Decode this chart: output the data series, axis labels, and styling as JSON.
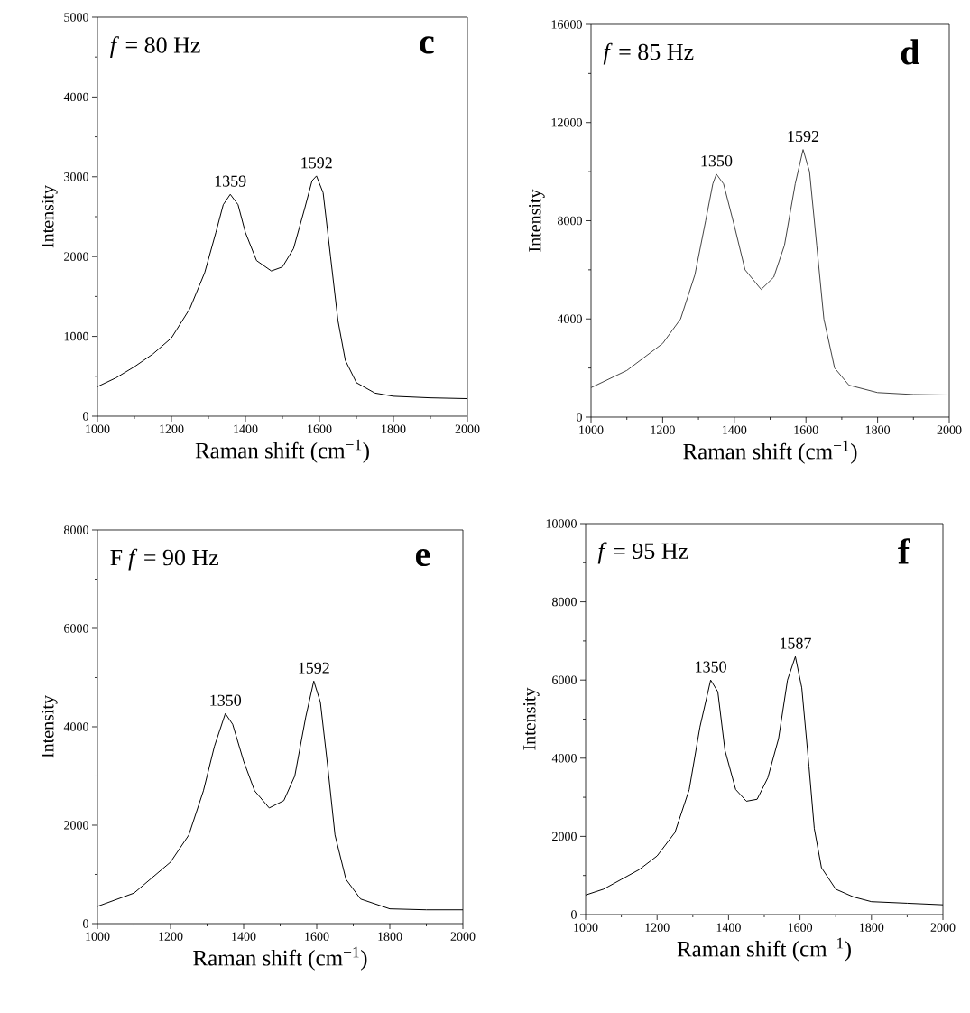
{
  "chart_data": [
    {
      "type": "line",
      "xlabel": "Raman shift (cm$^{−1}$)",
      "ylabel": "Intensity",
      "color": "#000000",
      "x": [
        1000,
        1050,
        1100,
        1150,
        1200,
        1250,
        1290,
        1320,
        1340,
        1359,
        1380,
        1400,
        1430,
        1470,
        1500,
        1530,
        1560,
        1580,
        1592,
        1610,
        1630,
        1650,
        1670,
        1700,
        1750,
        1800,
        1900,
        2000
      ],
      "values": [
        370,
        480,
        620,
        780,
        980,
        1350,
        1800,
        2300,
        2650,
        2780,
        2650,
        2300,
        1950,
        1820,
        1870,
        2100,
        2600,
        2950,
        3010,
        2800,
        2000,
        1200,
        700,
        420,
        290,
        250,
        230,
        220
      ],
      "xlim": [
        1000,
        2000
      ],
      "ylim": [
        0,
        5000
      ],
      "xticks": [
        1000,
        1200,
        1400,
        1600,
        1800,
        2000
      ],
      "yticks": [
        0,
        1000,
        2000,
        3000,
        4000,
        5000
      ],
      "annotations": [
        "*f* = 80 Hz",
        "c",
        {
          "text": "1359",
          "x": 1359,
          "y": 2780
        },
        {
          "text": "1592",
          "x": 1592,
          "y": 3010
        }
      ]
    },
    {
      "type": "line",
      "xlabel": "Raman shift (cm$^{−1}$)",
      "ylabel": "Intensity",
      "color": "#444444",
      "x": [
        1000,
        1100,
        1200,
        1250,
        1290,
        1320,
        1340,
        1350,
        1370,
        1400,
        1430,
        1475,
        1510,
        1540,
        1570,
        1592,
        1610,
        1630,
        1650,
        1680,
        1720,
        1800,
        1900,
        2000
      ],
      "values": [
        1200,
        1900,
        3000,
        4000,
        5800,
        8000,
        9500,
        9900,
        9500,
        7800,
        6000,
        5200,
        5700,
        7000,
        9500,
        10900,
        10000,
        7000,
        4000,
        2000,
        1300,
        1000,
        920,
        900
      ],
      "xlim": [
        1000,
        2000
      ],
      "ylim": [
        0,
        16000
      ],
      "xticks": [
        1000,
        1200,
        1400,
        1600,
        1800,
        2000
      ],
      "yticks": [
        0,
        4000,
        8000,
        12000,
        16000
      ],
      "annotations": [
        "*f* = 85 Hz",
        "d",
        {
          "text": "1350",
          "x": 1350,
          "y": 9900
        },
        {
          "text": "1592",
          "x": 1592,
          "y": 10900
        }
      ]
    },
    {
      "type": "line",
      "xlabel": "Raman shift (cm$^{−1}$)",
      "ylabel": "Intensity",
      "color": "#000000",
      "x": [
        1000,
        1100,
        1200,
        1250,
        1290,
        1320,
        1350,
        1370,
        1400,
        1430,
        1470,
        1510,
        1540,
        1570,
        1592,
        1610,
        1630,
        1650,
        1680,
        1720,
        1800,
        1900,
        2000
      ],
      "values": [
        350,
        620,
        1250,
        1800,
        2700,
        3600,
        4270,
        4050,
        3300,
        2700,
        2350,
        2500,
        3000,
        4200,
        4930,
        4500,
        3200,
        1800,
        900,
        500,
        300,
        280,
        280
      ],
      "xlim": [
        1000,
        2000
      ],
      "ylim": [
        0,
        8000
      ],
      "xticks": [
        1000,
        1200,
        1400,
        1600,
        1800,
        2000
      ],
      "yticks": [
        0,
        2000,
        4000,
        6000,
        8000
      ],
      "annotations": [
        "F",
        "*f* = 90 Hz",
        "e",
        {
          "text": "1350",
          "x": 1350,
          "y": 4270
        },
        {
          "text": "1592",
          "x": 1592,
          "y": 4930
        }
      ]
    },
    {
      "type": "line",
      "xlabel": "Raman shift (cm$^{−1}$)",
      "ylabel": "Intensity",
      "color": "#000000",
      "x": [
        1000,
        1050,
        1100,
        1150,
        1200,
        1250,
        1290,
        1320,
        1350,
        1370,
        1390,
        1420,
        1450,
        1480,
        1510,
        1540,
        1565,
        1587,
        1605,
        1625,
        1640,
        1660,
        1700,
        1750,
        1800,
        1900,
        2000
      ],
      "values": [
        500,
        650,
        900,
        1150,
        1500,
        2100,
        3200,
        4800,
        6000,
        5700,
        4200,
        3200,
        2900,
        2950,
        3500,
        4500,
        6000,
        6600,
        5800,
        3800,
        2200,
        1200,
        650,
        450,
        330,
        290,
        250
      ],
      "xlim": [
        1000,
        2000
      ],
      "ylim": [
        0,
        10000
      ],
      "xticks": [
        1000,
        1200,
        1400,
        1600,
        1800,
        2000
      ],
      "yticks": [
        0,
        2000,
        4000,
        6000,
        8000,
        10000
      ],
      "annotations": [
        "*f* = 95 Hz",
        "f",
        {
          "text": "1350",
          "x": 1350,
          "y": 6000
        },
        {
          "text": "1587",
          "x": 1587,
          "y": 6600
        }
      ]
    }
  ]
}
